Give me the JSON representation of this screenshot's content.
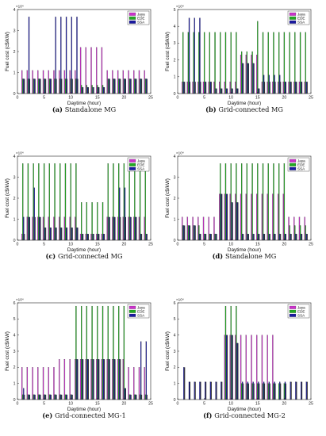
{
  "figure": {
    "colors": {
      "Jaya": "#cc33cc",
      "EDE": "#22aa22",
      "SSA": "#1a1aa0",
      "dark": "#2a2a2a"
    },
    "common_ylabel": "Fuel cost (c$/kW)",
    "common_xlabel": "Daytime (hour)"
  },
  "chart_data": [
    {
      "type": "bar",
      "caption_letter": "(a)",
      "caption_text": "Standalone MG",
      "xlabel": "Daytime (hour)",
      "ylabel": "Fuel cost (c$/kW)",
      "y_multiplier": "×10⁴",
      "xlim": [
        0,
        25
      ],
      "ylim": [
        0,
        4
      ],
      "xticks": [
        "0",
        "5",
        "10",
        "15",
        "20",
        "25"
      ],
      "yticks": [
        "0",
        "1",
        "2",
        "3",
        "4"
      ],
      "legend": [
        "Jaya",
        "EDE",
        "SSA"
      ],
      "series": [
        {
          "name": "Jaya",
          "values": [
            1.1,
            1.1,
            1.1,
            1.1,
            1.1,
            1.1,
            1.1,
            1.1,
            1.1,
            1.1,
            1.1,
            2.2,
            2.2,
            2.2,
            2.2,
            2.2,
            1.1,
            1.1,
            1.1,
            1.1,
            1.1,
            1.1,
            1.1,
            1.1
          ]
        },
        {
          "name": "EDE",
          "values": [
            0.7,
            0.7,
            0.7,
            0.7,
            0.7,
            0.7,
            0.7,
            0.7,
            0.7,
            0.7,
            0.7,
            0.4,
            0.4,
            0.4,
            0.4,
            0.4,
            0.7,
            0.7,
            0.7,
            0.7,
            0.7,
            0.7,
            0.7,
            0.7
          ]
        },
        {
          "name": "SSA",
          "values": [
            0.7,
            3.65,
            0.7,
            0.7,
            0.7,
            0.7,
            3.65,
            3.65,
            3.65,
            3.65,
            3.65,
            0.3,
            0.3,
            0.3,
            0.3,
            0.3,
            0.7,
            0.7,
            0.7,
            0.7,
            0.7,
            0.7,
            0.7,
            0.7
          ]
        }
      ]
    },
    {
      "type": "bar",
      "caption_letter": "(b)",
      "caption_text": "Grid-connected MG",
      "xlabel": "Daytime (hour)",
      "ylabel": "Fuel cost (c$/kW)",
      "y_multiplier": "×10⁴",
      "xlim": [
        0,
        25
      ],
      "ylim": [
        0,
        5
      ],
      "xticks": [
        "0",
        "5",
        "10",
        "15",
        "20",
        "25"
      ],
      "yticks": [
        "0",
        "1",
        "2",
        "3",
        "4",
        "5"
      ],
      "legend": [
        "Jaya",
        "EDE",
        "SSA"
      ],
      "series": [
        {
          "name": "Jaya",
          "values": [
            0.7,
            0.7,
            0.7,
            0.7,
            0.7,
            0.7,
            0.7,
            0.7,
            0.7,
            0.7,
            0.7,
            2.3,
            2.3,
            2.3,
            2.3,
            0.7,
            0.7,
            0.7,
            0.7,
            0.7,
            0.7,
            0.7,
            0.7,
            0.7
          ]
        },
        {
          "name": "EDE",
          "values": [
            3.65,
            3.65,
            3.65,
            3.65,
            3.65,
            3.65,
            3.65,
            3.65,
            3.65,
            3.65,
            3.65,
            2.5,
            2.5,
            2.5,
            4.3,
            3.65,
            3.65,
            3.65,
            3.65,
            3.65,
            3.65,
            3.65,
            3.65,
            3.65
          ]
        },
        {
          "name": "SSA",
          "values": [
            0.7,
            4.5,
            4.5,
            4.5,
            0.7,
            0.7,
            0.3,
            0.3,
            0.3,
            0.3,
            0.3,
            1.8,
            1.8,
            1.8,
            0.3,
            1.1,
            1.1,
            1.1,
            1.1,
            0.7,
            0.7,
            0.7,
            0.7,
            0.7
          ]
        }
      ]
    },
    {
      "type": "bar",
      "caption_letter": "(c)",
      "caption_text": "Grid-connected MG",
      "xlabel": "Daytime (hour)",
      "ylabel": "Fuel cost (c$/kW)",
      "y_multiplier": "×10⁴",
      "xlim": [
        0,
        25
      ],
      "ylim": [
        0,
        4
      ],
      "xticks": [
        "0",
        "5",
        "10",
        "15",
        "20",
        "25"
      ],
      "yticks": [
        "0",
        "1",
        "2",
        "3",
        "4"
      ],
      "legend": [
        "Jaya",
        "EDE",
        "SSA"
      ],
      "series": [
        {
          "name": "Jaya",
          "values": [
            0.3,
            1.1,
            1.1,
            1.1,
            1.1,
            1.1,
            1.1,
            1.1,
            1.1,
            1.1,
            1.1,
            0.3,
            0.3,
            0.3,
            0.3,
            0.3,
            1.1,
            1.1,
            1.1,
            1.1,
            1.1,
            1.1,
            1.1,
            1.1
          ]
        },
        {
          "name": "EDE",
          "values": [
            3.65,
            3.65,
            3.65,
            3.65,
            3.65,
            3.65,
            3.65,
            3.65,
            3.65,
            3.65,
            3.65,
            1.8,
            1.8,
            1.8,
            1.8,
            1.8,
            3.65,
            3.65,
            3.65,
            3.65,
            3.65,
            3.65,
            3.65,
            3.65
          ]
        },
        {
          "name": "SSA",
          "values": [
            1.1,
            1.1,
            2.5,
            1.1,
            0.6,
            0.6,
            0.6,
            0.6,
            0.6,
            0.6,
            0.6,
            0.3,
            0.3,
            0.3,
            0.3,
            0.3,
            1.1,
            1.1,
            2.5,
            2.5,
            1.1,
            1.1,
            0.3,
            0.3
          ]
        }
      ]
    },
    {
      "type": "bar",
      "caption_letter": "(d)",
      "caption_text": "Standalone MG",
      "xlabel": "Daytime (hour)",
      "ylabel": "Fuel cost (c$/kW)",
      "y_multiplier": "×10⁴",
      "xlim": [
        0,
        25
      ],
      "ylim": [
        0,
        4
      ],
      "xticks": [
        "0",
        "5",
        "10",
        "15",
        "20",
        "25"
      ],
      "yticks": [
        "0",
        "1",
        "2",
        "3",
        "4"
      ],
      "legend": [
        "Jaya",
        "EDE",
        "SSA"
      ],
      "series": [
        {
          "name": "Jaya",
          "values": [
            1.1,
            1.1,
            1.1,
            1.1,
            1.1,
            1.1,
            1.1,
            2.2,
            2.2,
            2.2,
            2.2,
            2.2,
            2.2,
            2.2,
            2.2,
            2.2,
            2.2,
            2.2,
            2.2,
            2.2,
            1.1,
            1.1,
            1.1,
            1.1
          ]
        },
        {
          "name": "EDE",
          "values": [
            0.7,
            0.7,
            0.7,
            0.7,
            0.3,
            0.3,
            0.3,
            3.65,
            3.65,
            3.65,
            3.65,
            3.65,
            3.65,
            3.65,
            3.65,
            3.65,
            3.65,
            3.65,
            3.65,
            3.65,
            0.7,
            0.7,
            0.7,
            0.7
          ]
        },
        {
          "name": "SSA",
          "values": [
            0.7,
            0.7,
            0.7,
            0.3,
            0.3,
            0.3,
            0.3,
            2.2,
            2.2,
            1.8,
            1.8,
            0.3,
            0.3,
            0.3,
            0.3,
            0.3,
            0.3,
            0.3,
            0.3,
            0.3,
            0.3,
            0.3,
            0.3,
            0.3
          ]
        }
      ]
    },
    {
      "type": "bar",
      "caption_letter": "(e)",
      "caption_text": "Grid-connected MG-1",
      "xlabel": "Daytime (hour)",
      "ylabel": "Fuel cost (c$/kW)",
      "y_multiplier": "×10⁴",
      "xlim": [
        0,
        25
      ],
      "ylim": [
        0,
        6
      ],
      "xticks": [
        "0",
        "5",
        "10",
        "15",
        "20",
        "25"
      ],
      "yticks": [
        "0",
        "1",
        "2",
        "3",
        "4",
        "5",
        "6"
      ],
      "legend": [
        "Jaya",
        "EDE",
        "SSA"
      ],
      "series": [
        {
          "name": "Jaya",
          "values": [
            2.0,
            2.0,
            2.0,
            2.0,
            2.0,
            2.0,
            2.0,
            2.5,
            2.5,
            2.5,
            2.5,
            2.5,
            2.5,
            2.5,
            2.5,
            2.5,
            2.5,
            2.5,
            2.5,
            2.5,
            2.0,
            2.0,
            2.0,
            2.0
          ]
        },
        {
          "name": "EDE",
          "values": [
            0.3,
            0.3,
            0.3,
            0.3,
            0.3,
            0.3,
            0.3,
            0.3,
            0.3,
            0.3,
            5.8,
            5.8,
            5.8,
            5.8,
            5.8,
            5.8,
            5.8,
            5.8,
            5.8,
            5.8,
            0.3,
            0.3,
            0.3,
            0.3
          ]
        },
        {
          "name": "SSA",
          "values": [
            0.7,
            0.3,
            0.3,
            0.3,
            0.3,
            0.3,
            0.3,
            0.3,
            0.3,
            0.3,
            2.5,
            2.5,
            2.5,
            2.5,
            2.5,
            2.5,
            2.5,
            2.5,
            2.5,
            0.7,
            0.3,
            0.3,
            3.6,
            3.6
          ]
        }
      ]
    },
    {
      "type": "bar",
      "caption_letter": "(f)",
      "caption_text": "Grid-connected MG-2",
      "xlabel": "Daytime (hour)",
      "ylabel": "Fuel cost (c$/kW)",
      "y_multiplier": "×10⁴",
      "xlim": [
        0,
        25
      ],
      "ylim": [
        0,
        6
      ],
      "xticks": [
        "0",
        "5",
        "10",
        "15",
        "20",
        "25"
      ],
      "yticks": [
        "0",
        "1",
        "2",
        "3",
        "4",
        "5",
        "6"
      ],
      "legend": [
        "Jaya",
        "EDE",
        "SSA"
      ],
      "series": [
        {
          "name": "Jaya",
          "values": [
            0,
            0,
            0,
            0,
            0,
            0,
            0,
            0,
            4.0,
            4.0,
            4.0,
            4.0,
            4.0,
            4.0,
            4.0,
            4.0,
            4.0,
            4.0,
            0,
            0,
            0,
            0,
            0,
            0
          ]
        },
        {
          "name": "EDE",
          "values": [
            0,
            0,
            0,
            0,
            0,
            0,
            0,
            0,
            5.8,
            5.8,
            5.8,
            1.0,
            1.0,
            1.0,
            1.0,
            1.0,
            1.0,
            1.0,
            1.0,
            1.0,
            0,
            0,
            0,
            0
          ]
        },
        {
          "name": "SSA",
          "values": [
            2.0,
            1.1,
            1.1,
            1.1,
            1.1,
            1.1,
            1.1,
            1.1,
            4.0,
            4.0,
            3.5,
            1.1,
            1.1,
            1.1,
            1.1,
            1.1,
            1.1,
            1.1,
            1.1,
            1.1,
            1.1,
            1.1,
            1.1,
            1.1
          ]
        }
      ]
    }
  ]
}
